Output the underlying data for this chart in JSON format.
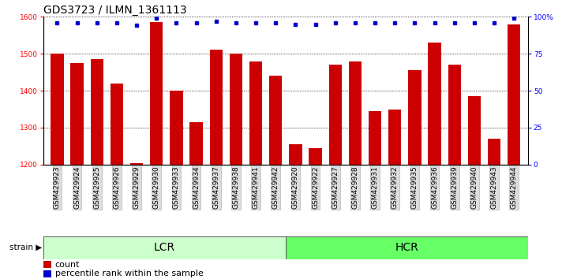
{
  "title": "GDS3723 / ILMN_1361113",
  "samples": [
    "GSM429923",
    "GSM429924",
    "GSM429925",
    "GSM429926",
    "GSM429929",
    "GSM429930",
    "GSM429933",
    "GSM429934",
    "GSM429937",
    "GSM429938",
    "GSM429941",
    "GSM429942",
    "GSM429920",
    "GSM429922",
    "GSM429927",
    "GSM429928",
    "GSM429931",
    "GSM429932",
    "GSM429935",
    "GSM429936",
    "GSM429939",
    "GSM429940",
    "GSM429943",
    "GSM429944"
  ],
  "values": [
    1500,
    1475,
    1485,
    1420,
    1205,
    1585,
    1400,
    1315,
    1510,
    1500,
    1478,
    1440,
    1255,
    1245,
    1470,
    1480,
    1345,
    1350,
    1455,
    1530,
    1470,
    1385,
    1270,
    1580
  ],
  "percentile_ranks": [
    96,
    96,
    96,
    96,
    94,
    99,
    96,
    96,
    97,
    96,
    96,
    96,
    95,
    95,
    96,
    96,
    96,
    96,
    96,
    96,
    96,
    96,
    96,
    99
  ],
  "groups": [
    "LCR",
    "LCR",
    "LCR",
    "LCR",
    "LCR",
    "LCR",
    "LCR",
    "LCR",
    "LCR",
    "LCR",
    "LCR",
    "LCR",
    "HCR",
    "HCR",
    "HCR",
    "HCR",
    "HCR",
    "HCR",
    "HCR",
    "HCR",
    "HCR",
    "HCR",
    "HCR",
    "HCR"
  ],
  "ylim_lo": 1200,
  "ylim_hi": 1600,
  "yticks": [
    1200,
    1300,
    1400,
    1500,
    1600
  ],
  "right_yticks": [
    0,
    25,
    50,
    75,
    100
  ],
  "bar_color": "#cc0000",
  "dot_color": "#0000cc",
  "lcr_color": "#ccffcc",
  "hcr_color": "#66ff66",
  "background_color": "#ffffff",
  "title_fontsize": 10,
  "tick_fontsize": 6.5,
  "group_label_fontsize": 10,
  "legend_fontsize": 8
}
